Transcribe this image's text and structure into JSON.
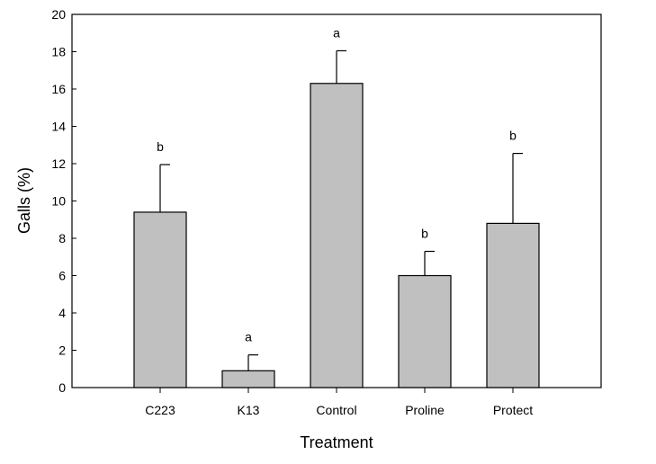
{
  "chart_data": {
    "type": "bar",
    "categories": [
      "C223",
      "K13",
      "Control",
      "Proline",
      "Protect"
    ],
    "values": [
      9.4,
      0.9,
      16.3,
      6.0,
      8.8
    ],
    "error_upper": [
      11.95,
      1.75,
      18.05,
      7.3,
      12.55
    ],
    "significance_letters": [
      "b",
      "a",
      "a",
      "b",
      "b"
    ],
    "xlabel": "Treatment",
    "ylabel": "Galls (%)",
    "ylim": [
      0,
      20
    ],
    "yticks": [
      "0",
      "2",
      "4",
      "6",
      "8",
      "10",
      "12",
      "14",
      "16",
      "18",
      "20"
    ],
    "grid": false,
    "bar_color": "#c0c0c0",
    "edge_color": "#000000"
  }
}
